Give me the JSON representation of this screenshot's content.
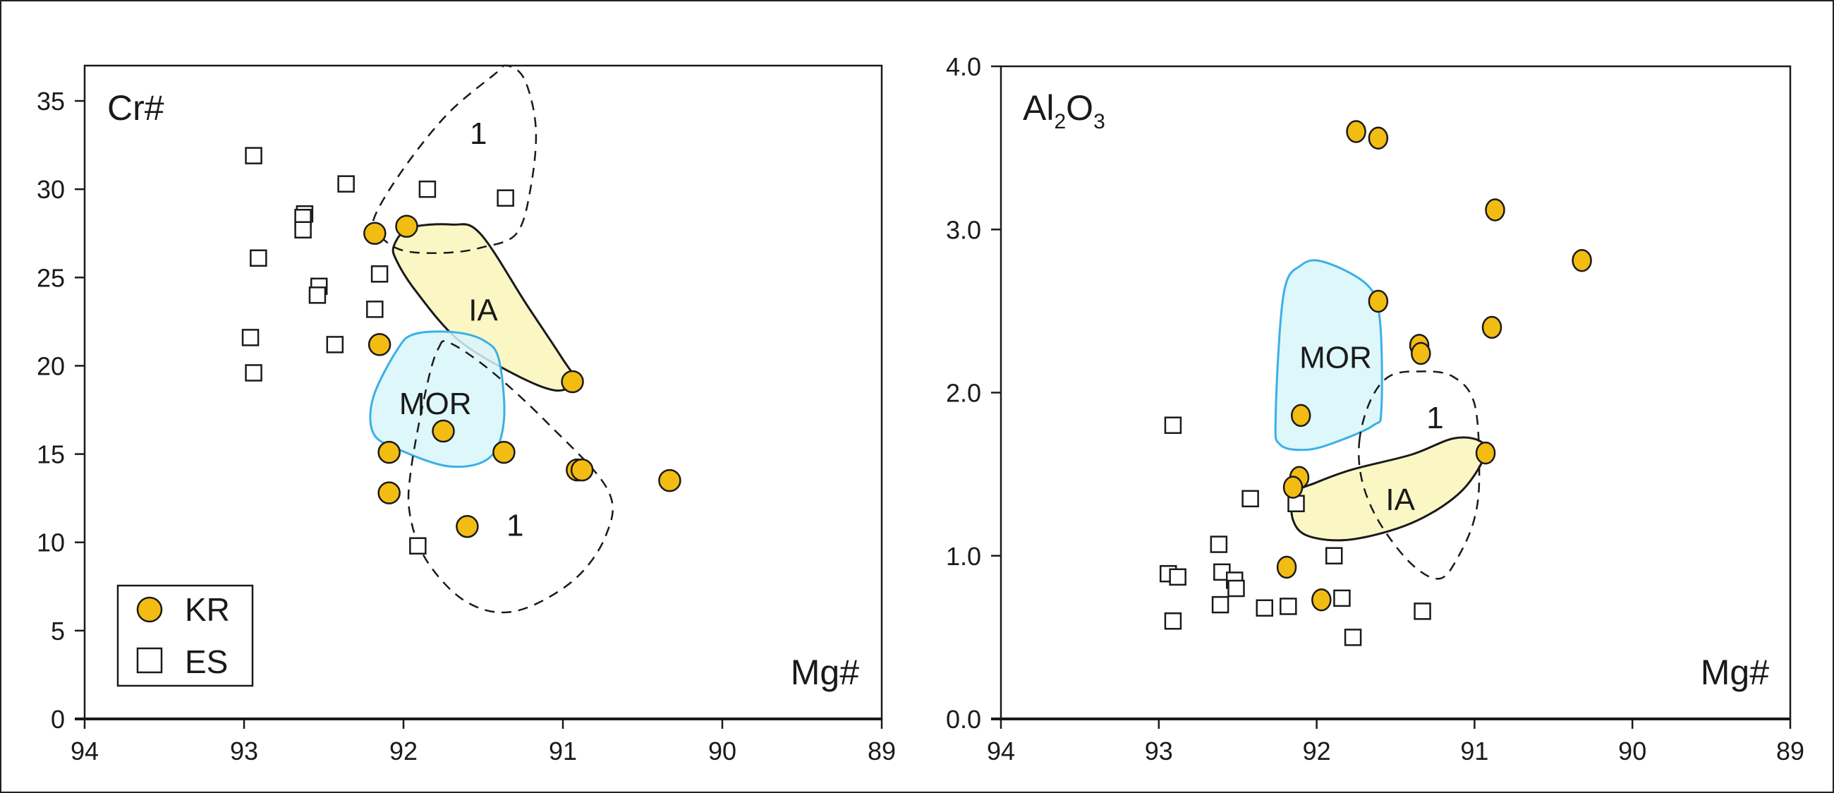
{
  "colors": {
    "kr_fill": "#F3BC12",
    "marker_stroke": "#1a1a1a",
    "ia_fill": "#FBF7C2",
    "mor_fill": "#D8F6FA",
    "mor_stroke": "#3BB0E6",
    "axis": "#1a1a1a"
  },
  "legend": {
    "items": [
      {
        "label": "KR",
        "marker": "circle"
      },
      {
        "label": "ES",
        "marker": "square"
      }
    ]
  },
  "chart_data": [
    {
      "type": "scatter",
      "id": "cr",
      "ylabel": "Cr#",
      "xlabel": "Mg#",
      "xlim": [
        94,
        89
      ],
      "ylim": [
        0,
        37
      ],
      "xticks": [
        94,
        93,
        92,
        91,
        90,
        89
      ],
      "yticks": [
        0,
        5,
        10,
        15,
        20,
        25,
        30,
        35
      ],
      "ytick_labels": [
        "0",
        "5",
        "10",
        "15",
        "20",
        "25",
        "30",
        "35"
      ],
      "legend_placement": "bottom-left",
      "series": [
        {
          "name": "KR",
          "marker": "circle",
          "points": [
            [
              92.18,
              27.5
            ],
            [
              91.98,
              27.9
            ],
            [
              92.15,
              21.2
            ],
            [
              90.94,
              19.1
            ],
            [
              92.09,
              15.1
            ],
            [
              91.75,
              16.3
            ],
            [
              91.37,
              15.1
            ],
            [
              90.91,
              14.1
            ],
            [
              90.88,
              14.1
            ],
            [
              90.33,
              13.5
            ],
            [
              92.09,
              12.8
            ],
            [
              91.6,
              10.9
            ]
          ]
        },
        {
          "name": "ES",
          "marker": "square",
          "points": [
            [
              92.94,
              31.9
            ],
            [
              92.36,
              30.3
            ],
            [
              91.85,
              30.0
            ],
            [
              91.36,
              29.5
            ],
            [
              92.62,
              28.6
            ],
            [
              92.63,
              28.4
            ],
            [
              92.63,
              27.7
            ],
            [
              92.91,
              26.1
            ],
            [
              92.15,
              25.2
            ],
            [
              92.53,
              24.5
            ],
            [
              92.54,
              24.0
            ],
            [
              92.18,
              23.2
            ],
            [
              92.96,
              21.6
            ],
            [
              92.43,
              21.2
            ],
            [
              92.94,
              19.6
            ],
            [
              91.91,
              9.8
            ]
          ]
        }
      ],
      "fields": [
        {
          "name": "1",
          "label": "1",
          "style": "dashed",
          "label_at": [
            91.53,
            33.2
          ],
          "outline": [
            [
              92.19,
              28.2
            ],
            [
              92.02,
              30.9
            ],
            [
              91.73,
              34.2
            ],
            [
              91.43,
              36.5
            ],
            [
              91.35,
              37.0
            ],
            [
              91.24,
              36.2
            ],
            [
              91.17,
              33.5
            ],
            [
              91.2,
              30.2
            ],
            [
              91.29,
              27.5
            ],
            [
              91.51,
              26.7
            ],
            [
              91.73,
              26.4
            ],
            [
              91.99,
              26.5
            ],
            [
              92.13,
              27.2
            ]
          ]
        },
        {
          "name": "IA",
          "label": "IA",
          "style": "solid-yellow",
          "label_at": [
            91.5,
            23.2
          ],
          "outline": [
            [
              92.06,
              26.8
            ],
            [
              91.96,
              27.8
            ],
            [
              91.7,
              28.0
            ],
            [
              91.52,
              27.5
            ],
            [
              91.23,
              23.5
            ],
            [
              91.01,
              20.5
            ],
            [
              90.93,
              19.2
            ],
            [
              91.04,
              18.6
            ],
            [
              91.3,
              19.5
            ],
            [
              91.66,
              21.5
            ],
            [
              91.92,
              24.2
            ],
            [
              92.04,
              25.9
            ]
          ]
        },
        {
          "name": "MOR",
          "label": "MOR",
          "style": "solid-blue",
          "label_at": [
            91.8,
            17.9
          ],
          "outline": [
            [
              92.19,
              18.2
            ],
            [
              92.04,
              20.9
            ],
            [
              91.93,
              21.8
            ],
            [
              91.68,
              21.9
            ],
            [
              91.49,
              21.4
            ],
            [
              91.4,
              20.3
            ],
            [
              91.37,
              16.9
            ],
            [
              91.46,
              14.8
            ],
            [
              91.71,
              14.3
            ],
            [
              92.04,
              15.3
            ],
            [
              92.19,
              16.2
            ]
          ]
        },
        {
          "name": "1",
          "label": "1",
          "style": "dashed",
          "label_at": [
            91.3,
            11.0
          ],
          "outline": [
            [
              91.78,
              21.0
            ],
            [
              91.71,
              21.3
            ],
            [
              91.45,
              19.7
            ],
            [
              91.09,
              16.7
            ],
            [
              90.72,
              13.0
            ],
            [
              90.73,
              10.4
            ],
            [
              90.94,
              7.8
            ],
            [
              91.3,
              6.1
            ],
            [
              91.6,
              6.6
            ],
            [
              91.85,
              8.9
            ],
            [
              91.96,
              11.6
            ],
            [
              91.95,
              14.3
            ],
            [
              91.85,
              19.0
            ]
          ]
        }
      ]
    },
    {
      "type": "scatter",
      "id": "al",
      "ylabel": "Al2O3",
      "ylabel_parts": [
        "Al",
        "2",
        "O",
        "3"
      ],
      "xlabel": "Mg#",
      "xlim": [
        94,
        89
      ],
      "ylim": [
        0,
        4.0
      ],
      "xticks": [
        94,
        93,
        92,
        91,
        90,
        89
      ],
      "yticks": [
        0,
        1,
        2,
        3,
        4
      ],
      "ytick_labels": [
        "0.0",
        "1.0",
        "2.0",
        "3.0",
        "4.0"
      ],
      "series": [
        {
          "name": "KR",
          "marker": "circle",
          "points": [
            [
              91.75,
              3.6
            ],
            [
              91.61,
              3.56
            ],
            [
              90.87,
              3.12
            ],
            [
              90.32,
              2.81
            ],
            [
              91.61,
              2.56
            ],
            [
              90.89,
              2.4
            ],
            [
              91.35,
              2.29
            ],
            [
              91.34,
              2.24
            ],
            [
              92.1,
              1.86
            ],
            [
              90.93,
              1.63
            ],
            [
              92.11,
              1.48
            ],
            [
              92.15,
              1.42
            ],
            [
              92.19,
              0.93
            ],
            [
              91.97,
              0.73
            ]
          ]
        },
        {
          "name": "ES",
          "marker": "square",
          "points": [
            [
              92.91,
              1.8
            ],
            [
              92.42,
              1.35
            ],
            [
              92.13,
              1.32
            ],
            [
              92.62,
              1.07
            ],
            [
              91.89,
              1.0
            ],
            [
              92.94,
              0.89
            ],
            [
              92.88,
              0.87
            ],
            [
              92.6,
              0.9
            ],
            [
              92.52,
              0.85
            ],
            [
              92.51,
              0.8
            ],
            [
              91.84,
              0.74
            ],
            [
              92.33,
              0.68
            ],
            [
              92.18,
              0.69
            ],
            [
              92.61,
              0.7
            ],
            [
              91.33,
              0.66
            ],
            [
              92.91,
              0.6
            ],
            [
              91.77,
              0.5
            ]
          ]
        }
      ],
      "fields": [
        {
          "name": "MOR",
          "label": "MOR",
          "style": "solid-blue",
          "label_at": [
            91.88,
            2.22
          ],
          "outline": [
            [
              92.21,
              2.6
            ],
            [
              92.1,
              2.78
            ],
            [
              91.95,
              2.8
            ],
            [
              91.68,
              2.66
            ],
            [
              91.6,
              2.45
            ],
            [
              91.59,
              1.9
            ],
            [
              91.64,
              1.8
            ],
            [
              91.87,
              1.7
            ],
            [
              92.06,
              1.65
            ],
            [
              92.23,
              1.68
            ],
            [
              92.26,
              1.85
            ]
          ]
        },
        {
          "name": "1",
          "label": "1",
          "style": "dashed",
          "label_at": [
            91.25,
            1.85
          ],
          "outline": [
            [
              91.73,
              1.7
            ],
            [
              91.66,
              1.95
            ],
            [
              91.54,
              2.1
            ],
            [
              91.35,
              2.13
            ],
            [
              91.14,
              2.1
            ],
            [
              91.0,
              1.93
            ],
            [
              90.97,
              1.5
            ],
            [
              91.0,
              1.23
            ],
            [
              91.1,
              1.0
            ],
            [
              91.22,
              0.86
            ],
            [
              91.4,
              0.95
            ],
            [
              91.6,
              1.2
            ],
            [
              91.71,
              1.45
            ]
          ]
        },
        {
          "name": "IA",
          "label": "IA",
          "style": "solid-yellow",
          "label_at": [
            91.47,
            1.35
          ],
          "outline": [
            [
              92.14,
              1.38
            ],
            [
              92.0,
              1.45
            ],
            [
              91.77,
              1.53
            ],
            [
              91.4,
              1.62
            ],
            [
              91.13,
              1.72
            ],
            [
              90.96,
              1.7
            ],
            [
              90.94,
              1.6
            ],
            [
              91.1,
              1.38
            ],
            [
              91.4,
              1.2
            ],
            [
              91.78,
              1.1
            ],
            [
              92.05,
              1.12
            ],
            [
              92.15,
              1.22
            ]
          ]
        }
      ]
    }
  ]
}
